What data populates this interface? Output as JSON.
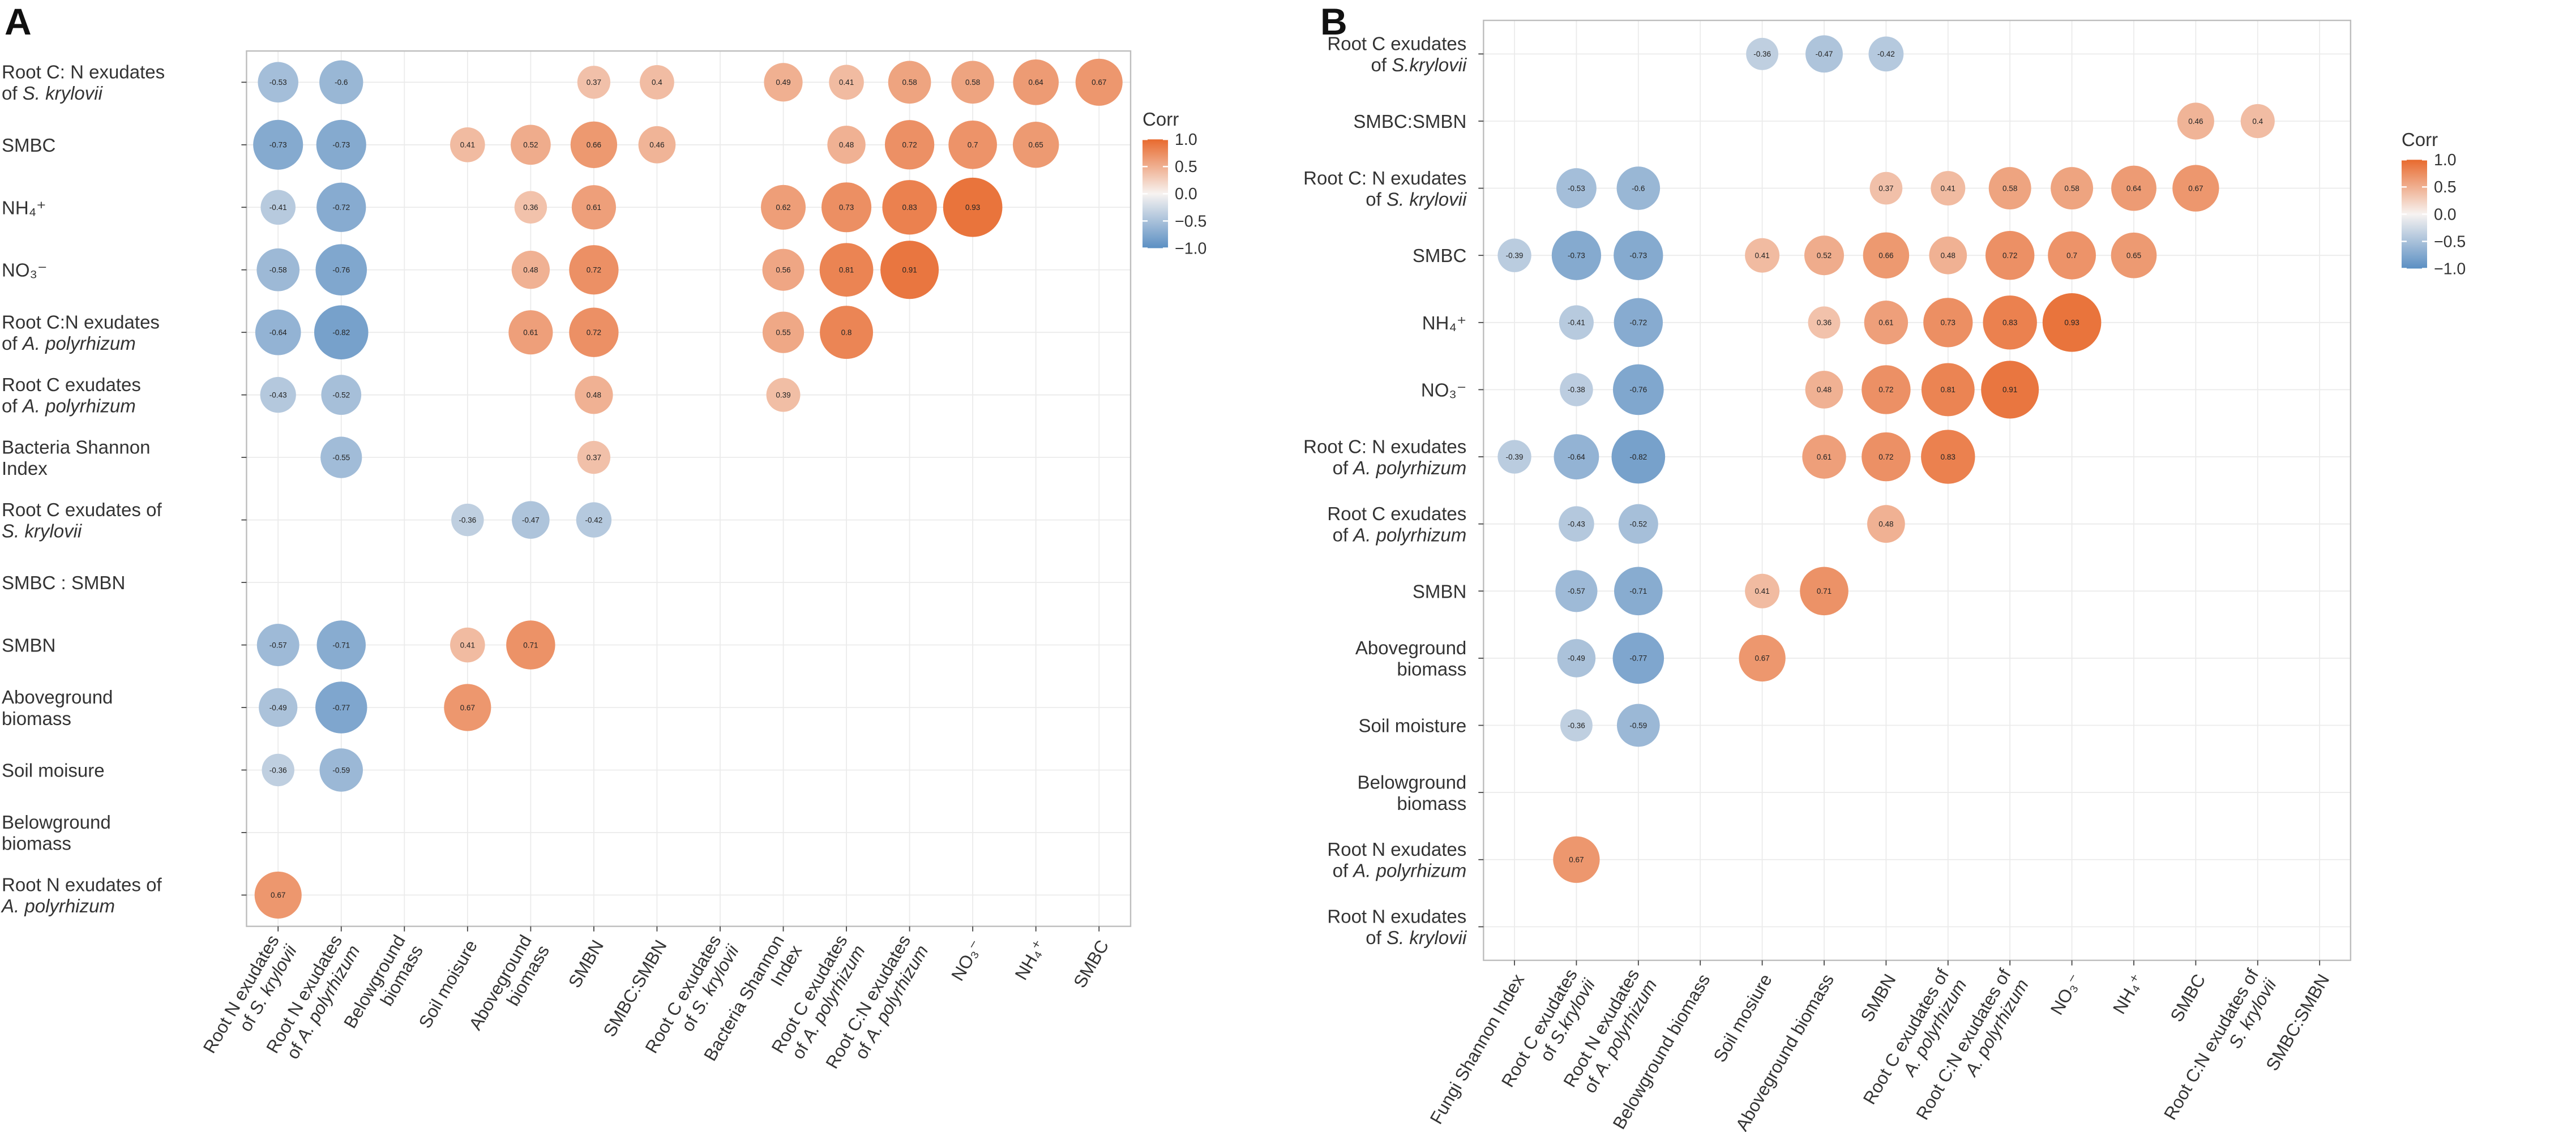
{
  "chart_data": [
    {
      "type": "heatmap",
      "panel": "A",
      "title": "",
      "rows": [
        [
          "Root C: N exudates",
          "of S. krylovii"
        ],
        [
          "SMBC"
        ],
        [
          "NH₄⁺"
        ],
        [
          "NO₃⁻"
        ],
        [
          "Root C:N exudates",
          "of A. polyrhizum"
        ],
        [
          "Root C exudates",
          "of A. polyrhizum"
        ],
        [
          "Bacteria Shannon",
          "Index"
        ],
        [
          "Root C exudates of",
          "S. krylovii"
        ],
        [
          "SMBC : SMBN"
        ],
        [
          "SMBN"
        ],
        [
          "Aboveground",
          "biomass"
        ],
        [
          "Soil moisure"
        ],
        [
          "Belowground",
          "biomass"
        ],
        [
          "Root N exudates of",
          "A. polyrhizum"
        ]
      ],
      "columns": [
        [
          "Root N exudates",
          "of S. krylovii"
        ],
        [
          "Root N exudates",
          "of A. polyrhizum"
        ],
        [
          "Belowground",
          "biomass"
        ],
        [
          "Soil moisure"
        ],
        [
          "Aboveground",
          "biomass"
        ],
        [
          "SMBN"
        ],
        [
          "SMBC:SMBN"
        ],
        [
          "Root C exudates",
          "of S. krylovii"
        ],
        [
          "Bacteria Shannon",
          "Index"
        ],
        [
          "Root C exudates",
          "of A. polyrhizum"
        ],
        [
          "Root C:N exudates",
          "of A. polyrhizum"
        ],
        [
          "NO₃⁻"
        ],
        [
          "NH₄⁺"
        ],
        [
          "SMBC"
        ]
      ],
      "cells": [
        {
          "r": 0,
          "c": 0,
          "v": -0.53
        },
        {
          "r": 0,
          "c": 1,
          "v": -0.6
        },
        {
          "r": 0,
          "c": 5,
          "v": 0.37
        },
        {
          "r": 0,
          "c": 6,
          "v": 0.4
        },
        {
          "r": 0,
          "c": 8,
          "v": 0.49
        },
        {
          "r": 0,
          "c": 9,
          "v": 0.41
        },
        {
          "r": 0,
          "c": 10,
          "v": 0.58
        },
        {
          "r": 0,
          "c": 11,
          "v": 0.58
        },
        {
          "r": 0,
          "c": 12,
          "v": 0.64
        },
        {
          "r": 0,
          "c": 13,
          "v": 0.67
        },
        {
          "r": 1,
          "c": 0,
          "v": -0.73
        },
        {
          "r": 1,
          "c": 1,
          "v": -0.73
        },
        {
          "r": 1,
          "c": 3,
          "v": 0.41
        },
        {
          "r": 1,
          "c": 4,
          "v": 0.52
        },
        {
          "r": 1,
          "c": 5,
          "v": 0.66
        },
        {
          "r": 1,
          "c": 6,
          "v": 0.46
        },
        {
          "r": 1,
          "c": 9,
          "v": 0.48
        },
        {
          "r": 1,
          "c": 10,
          "v": 0.72
        },
        {
          "r": 1,
          "c": 11,
          "v": 0.7
        },
        {
          "r": 1,
          "c": 12,
          "v": 0.65
        },
        {
          "r": 2,
          "c": 0,
          "v": -0.41
        },
        {
          "r": 2,
          "c": 1,
          "v": -0.72
        },
        {
          "r": 2,
          "c": 4,
          "v": 0.36
        },
        {
          "r": 2,
          "c": 5,
          "v": 0.61
        },
        {
          "r": 2,
          "c": 8,
          "v": 0.62
        },
        {
          "r": 2,
          "c": 9,
          "v": 0.73
        },
        {
          "r": 2,
          "c": 10,
          "v": 0.83
        },
        {
          "r": 2,
          "c": 11,
          "v": 0.93
        },
        {
          "r": 3,
          "c": 0,
          "v": -0.58
        },
        {
          "r": 3,
          "c": 1,
          "v": -0.76
        },
        {
          "r": 3,
          "c": 4,
          "v": 0.48
        },
        {
          "r": 3,
          "c": 5,
          "v": 0.72
        },
        {
          "r": 3,
          "c": 8,
          "v": 0.56
        },
        {
          "r": 3,
          "c": 9,
          "v": 0.81
        },
        {
          "r": 3,
          "c": 10,
          "v": 0.91
        },
        {
          "r": 4,
          "c": 0,
          "v": -0.64
        },
        {
          "r": 4,
          "c": 1,
          "v": -0.82
        },
        {
          "r": 4,
          "c": 4,
          "v": 0.61
        },
        {
          "r": 4,
          "c": 5,
          "v": 0.72
        },
        {
          "r": 4,
          "c": 8,
          "v": 0.55
        },
        {
          "r": 4,
          "c": 9,
          "v": 0.8
        },
        {
          "r": 5,
          "c": 0,
          "v": -0.43
        },
        {
          "r": 5,
          "c": 1,
          "v": -0.52
        },
        {
          "r": 5,
          "c": 5,
          "v": 0.48
        },
        {
          "r": 5,
          "c": 8,
          "v": 0.39
        },
        {
          "r": 6,
          "c": 1,
          "v": -0.55
        },
        {
          "r": 6,
          "c": 5,
          "v": 0.37
        },
        {
          "r": 7,
          "c": 3,
          "v": -0.36
        },
        {
          "r": 7,
          "c": 4,
          "v": -0.47
        },
        {
          "r": 7,
          "c": 5,
          "v": -0.42
        },
        {
          "r": 9,
          "c": 0,
          "v": -0.57
        },
        {
          "r": 9,
          "c": 1,
          "v": -0.71
        },
        {
          "r": 9,
          "c": 3,
          "v": 0.41
        },
        {
          "r": 9,
          "c": 4,
          "v": 0.71
        },
        {
          "r": 10,
          "c": 0,
          "v": -0.49
        },
        {
          "r": 10,
          "c": 1,
          "v": -0.77
        },
        {
          "r": 10,
          "c": 3,
          "v": 0.67
        },
        {
          "r": 11,
          "c": 0,
          "v": -0.36
        },
        {
          "r": 11,
          "c": 1,
          "v": -0.59
        },
        {
          "r": 13,
          "c": 0,
          "v": 0.67
        }
      ],
      "legend": {
        "title": "Corr",
        "ticks": [
          "1.0",
          "0.5",
          "0.0",
          "−0.5",
          "−1.0"
        ],
        "range": [
          -1,
          1
        ],
        "low_color": "#5b8fc3",
        "mid_color": "#f7f3f1",
        "high_color": "#e86a2e"
      }
    },
    {
      "type": "heatmap",
      "panel": "B",
      "title": "",
      "rows": [
        [
          "Root C exudates",
          "of S.krylovii"
        ],
        [
          "SMBC:SMBN"
        ],
        [
          "Root C: N exudates",
          "of S. krylovii"
        ],
        [
          "SMBC"
        ],
        [
          "NH₄⁺"
        ],
        [
          "NO₃⁻"
        ],
        [
          "Root C: N exudates",
          "of A. polyrhizum"
        ],
        [
          "Root C exudates",
          "of A. polyrhizum"
        ],
        [
          "SMBN"
        ],
        [
          "Aboveground",
          "biomass"
        ],
        [
          "Soil moisture"
        ],
        [
          "Belowground",
          "biomass"
        ],
        [
          "Root N exudates",
          "of A. polyrhizum"
        ],
        [
          "Root N exudates",
          "of S. krylovii"
        ]
      ],
      "columns": [
        [
          "Fungi Shannon Index"
        ],
        [
          "Root C exudates",
          "of S.krylovii"
        ],
        [
          "Root N exudates",
          "of A. polyrhizum"
        ],
        [
          "Belowground biomass"
        ],
        [
          "Soil mosiure"
        ],
        [
          "Aboveground biomass"
        ],
        [
          "SMBN"
        ],
        [
          "Root C exudates of",
          "A. polyrhizum"
        ],
        [
          "Root C:N exudates of",
          "A. polyrhizum"
        ],
        [
          "NO₃⁻"
        ],
        [
          "NH₄⁺"
        ],
        [
          "SMBC"
        ],
        [
          "Root C:N exudates of",
          "S. krylovii"
        ],
        [
          "SMBC:SMBN"
        ]
      ],
      "cells": [
        {
          "r": 0,
          "c": 4,
          "v": -0.36
        },
        {
          "r": 0,
          "c": 5,
          "v": -0.47
        },
        {
          "r": 0,
          "c": 6,
          "v": -0.42
        },
        {
          "r": 1,
          "c": 11,
          "v": 0.46
        },
        {
          "r": 1,
          "c": 12,
          "v": 0.4
        },
        {
          "r": 2,
          "c": 1,
          "v": -0.53
        },
        {
          "r": 2,
          "c": 2,
          "v": -0.6
        },
        {
          "r": 2,
          "c": 6,
          "v": 0.37
        },
        {
          "r": 2,
          "c": 7,
          "v": 0.41
        },
        {
          "r": 2,
          "c": 8,
          "v": 0.58
        },
        {
          "r": 2,
          "c": 9,
          "v": 0.58
        },
        {
          "r": 2,
          "c": 10,
          "v": 0.64
        },
        {
          "r": 2,
          "c": 11,
          "v": 0.67
        },
        {
          "r": 3,
          "c": 0,
          "v": -0.39
        },
        {
          "r": 3,
          "c": 1,
          "v": -0.73
        },
        {
          "r": 3,
          "c": 2,
          "v": -0.73
        },
        {
          "r": 3,
          "c": 4,
          "v": 0.41
        },
        {
          "r": 3,
          "c": 5,
          "v": 0.52
        },
        {
          "r": 3,
          "c": 6,
          "v": 0.66
        },
        {
          "r": 3,
          "c": 7,
          "v": 0.48
        },
        {
          "r": 3,
          "c": 8,
          "v": 0.72
        },
        {
          "r": 3,
          "c": 9,
          "v": 0.7
        },
        {
          "r": 3,
          "c": 10,
          "v": 0.65
        },
        {
          "r": 4,
          "c": 1,
          "v": -0.41
        },
        {
          "r": 4,
          "c": 2,
          "v": -0.72
        },
        {
          "r": 4,
          "c": 5,
          "v": 0.36
        },
        {
          "r": 4,
          "c": 6,
          "v": 0.61
        },
        {
          "r": 4,
          "c": 7,
          "v": 0.73
        },
        {
          "r": 4,
          "c": 8,
          "v": 0.83
        },
        {
          "r": 4,
          "c": 9,
          "v": 0.93
        },
        {
          "r": 5,
          "c": 1,
          "v": -0.38
        },
        {
          "r": 5,
          "c": 2,
          "v": -0.76
        },
        {
          "r": 5,
          "c": 5,
          "v": 0.48
        },
        {
          "r": 5,
          "c": 6,
          "v": 0.72
        },
        {
          "r": 5,
          "c": 7,
          "v": 0.81
        },
        {
          "r": 5,
          "c": 8,
          "v": 0.91
        },
        {
          "r": 6,
          "c": 0,
          "v": -0.39
        },
        {
          "r": 6,
          "c": 1,
          "v": -0.64
        },
        {
          "r": 6,
          "c": 2,
          "v": -0.82
        },
        {
          "r": 6,
          "c": 5,
          "v": 0.61
        },
        {
          "r": 6,
          "c": 6,
          "v": 0.72
        },
        {
          "r": 6,
          "c": 7,
          "v": 0.83
        },
        {
          "r": 7,
          "c": 1,
          "v": -0.43
        },
        {
          "r": 7,
          "c": 2,
          "v": -0.52
        },
        {
          "r": 7,
          "c": 6,
          "v": 0.48
        },
        {
          "r": 8,
          "c": 1,
          "v": -0.57
        },
        {
          "r": 8,
          "c": 2,
          "v": -0.71
        },
        {
          "r": 8,
          "c": 4,
          "v": 0.41
        },
        {
          "r": 8,
          "c": 5,
          "v": 0.71
        },
        {
          "r": 9,
          "c": 1,
          "v": -0.49
        },
        {
          "r": 9,
          "c": 2,
          "v": -0.77
        },
        {
          "r": 9,
          "c": 4,
          "v": 0.67
        },
        {
          "r": 10,
          "c": 1,
          "v": -0.36
        },
        {
          "r": 10,
          "c": 2,
          "v": -0.59
        },
        {
          "r": 12,
          "c": 1,
          "v": 0.67
        }
      ],
      "legend": {
        "title": "Corr",
        "ticks": [
          "1.0",
          "0.5",
          "0.0",
          "−0.5",
          "−1.0"
        ],
        "range": [
          -1,
          1
        ],
        "low_color": "#5b8fc3",
        "mid_color": "#f7f3f1",
        "high_color": "#e86a2e"
      }
    }
  ],
  "panels": {
    "a_label": "A",
    "b_label": "B"
  }
}
